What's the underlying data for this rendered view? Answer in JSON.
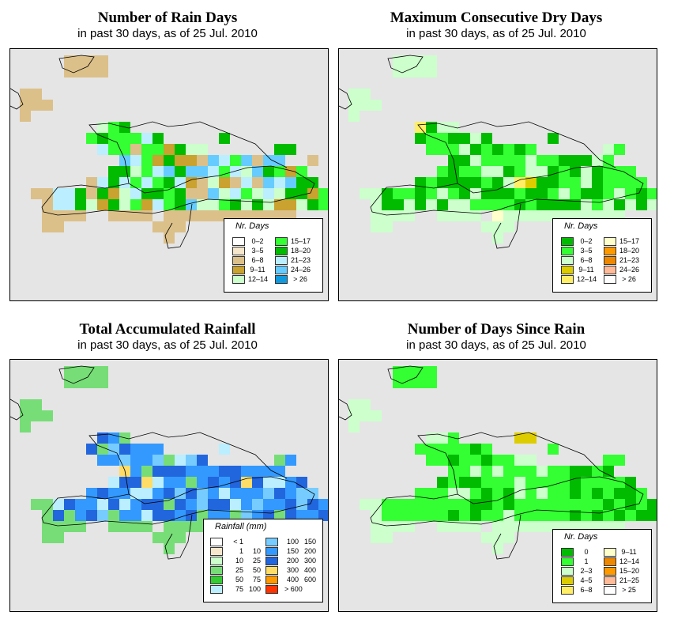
{
  "panels": [
    {
      "title": "Number of Rain Days",
      "subtitle": "in past 30 days, as of  25 Jul. 2010",
      "legend_title": "Nr. Days",
      "legend_left": [
        {
          "label": "0–2",
          "color": "#ffffff"
        },
        {
          "label": "3–5",
          "color": "#f5e6cc"
        },
        {
          "label": "6–8",
          "color": "#dcc08a"
        },
        {
          "label": "9–11",
          "color": "#c9a230"
        },
        {
          "label": "12–14",
          "color": "#ccffcc"
        }
      ],
      "legend_right": [
        {
          "label": "15–17",
          "color": "#33ff33"
        },
        {
          "label": "18–20",
          "color": "#00bb00"
        },
        {
          "label": "21–23",
          "color": "#bbeeff"
        },
        {
          "label": "24–26",
          "color": "#66ccff"
        },
        {
          "label": "> 26",
          "color": "#1199dd"
        }
      ]
    },
    {
      "title": "Maximum Consecutive Dry Days",
      "subtitle": "in past 30 days, as of  25 Jul. 2010",
      "legend_title": "Nr. Days",
      "legend_left": [
        {
          "label": "0–2",
          "color": "#00bb00"
        },
        {
          "label": "3–5",
          "color": "#33ff33"
        },
        {
          "label": "6–8",
          "color": "#ccffcc"
        },
        {
          "label": "9–11",
          "color": "#ddcc00"
        },
        {
          "label": "12–14",
          "color": "#ffee66"
        }
      ],
      "legend_right": [
        {
          "label": "15–17",
          "color": "#ffffcc"
        },
        {
          "label": "18–20",
          "color": "#ff9900"
        },
        {
          "label": "21–23",
          "color": "#ee8800"
        },
        {
          "label": "24–26",
          "color": "#ffbb99"
        },
        {
          "label": "> 26",
          "color": "#ffffff"
        }
      ]
    },
    {
      "title": "Total Accumulated Rainfall",
      "subtitle": "in past 30 days, as of  25 Jul. 2010",
      "legend_title": "Rainfall (mm)",
      "legend_left": [
        {
          "a": "< 1",
          "b": "",
          "color": "#ffffff"
        },
        {
          "a": "1",
          "b": "10",
          "color": "#f5e6cc"
        },
        {
          "a": "10",
          "b": "25",
          "color": "#ccffcc"
        },
        {
          "a": "25",
          "b": "50",
          "color": "#77dd77"
        },
        {
          "a": "50",
          "b": "75",
          "color": "#33cc33"
        },
        {
          "a": "75",
          "b": "100",
          "color": "#bbeeff"
        }
      ],
      "legend_right": [
        {
          "a": "100",
          "b": "150",
          "color": "#77ccff"
        },
        {
          "a": "150",
          "b": "200",
          "color": "#3399ff"
        },
        {
          "a": "200",
          "b": "300",
          "color": "#2266dd"
        },
        {
          "a": "300",
          "b": "400",
          "color": "#ffdd66"
        },
        {
          "a": "400",
          "b": "600",
          "color": "#ff9900"
        },
        {
          "a": "> 600",
          "b": "",
          "color": "#ff3300"
        }
      ]
    },
    {
      "title": "Number of Days Since Rain",
      "subtitle": "in past 30 days, as of  25 Jul. 2010",
      "legend_title": "Nr. Days",
      "legend_left": [
        {
          "label": "0",
          "color": "#00bb00"
        },
        {
          "label": "1",
          "color": "#33ff33"
        },
        {
          "label": "2–3",
          "color": "#ccffcc"
        },
        {
          "label": "4–5",
          "color": "#ddcc00"
        },
        {
          "label": "6–8",
          "color": "#ffee66"
        }
      ],
      "legend_right": [
        {
          "label": "9–11",
          "color": "#ffffcc"
        },
        {
          "label": "12–14",
          "color": "#ee8800"
        },
        {
          "label": "15–20",
          "color": "#ff9900"
        },
        {
          "label": "21–25",
          "color": "#ffbb99"
        },
        {
          "label": "> 25",
          "color": "#ffffff"
        }
      ]
    }
  ],
  "map_colors": {
    "background": "#e5e5e5",
    "coast": "#000000"
  }
}
